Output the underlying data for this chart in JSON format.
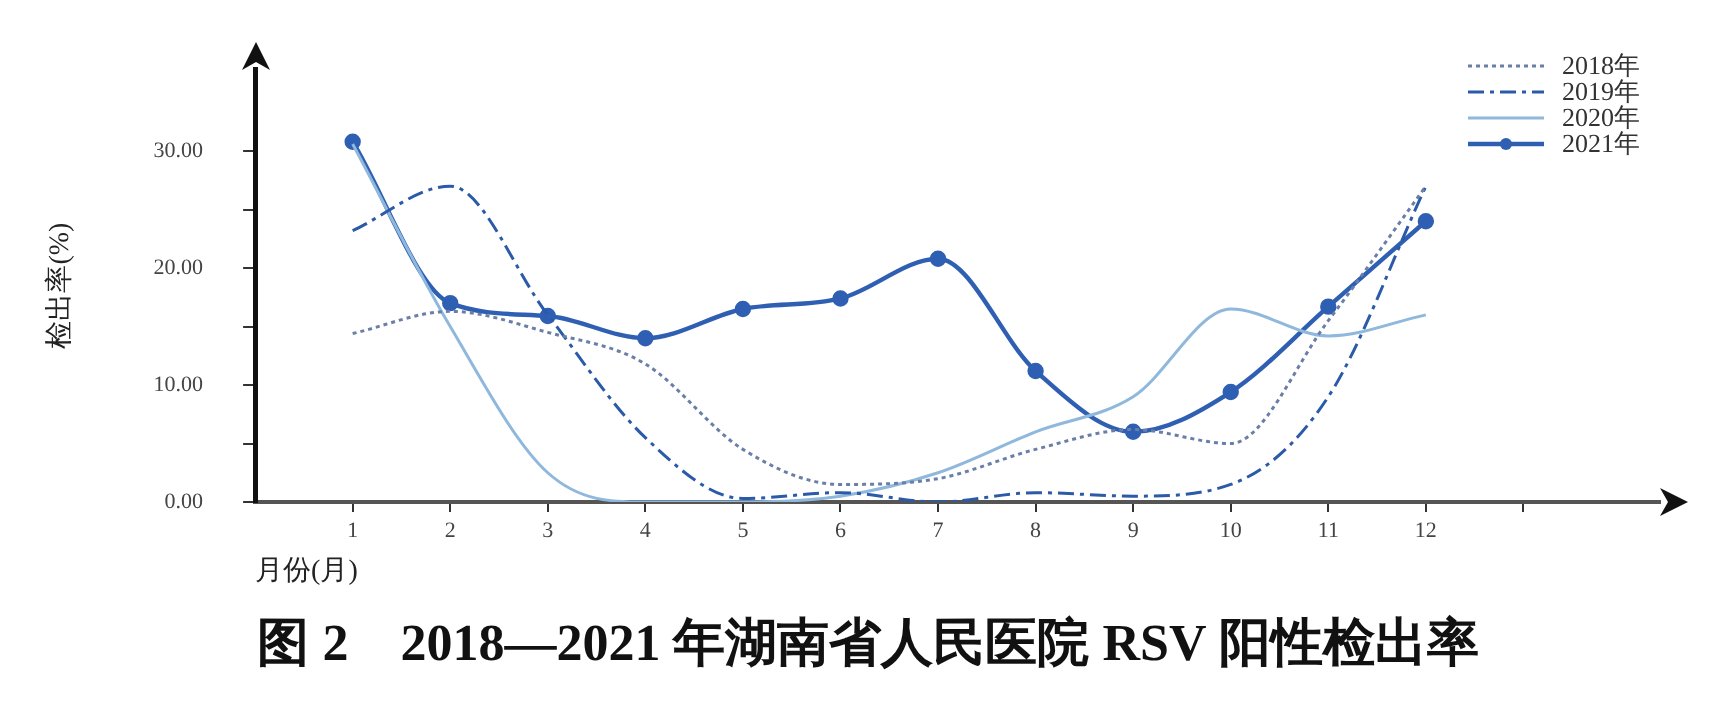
{
  "chart_data": {
    "type": "line",
    "title": "图 2　2018—2021 年湖南省人民医院 RSV 阳性检出率",
    "xlabel": "月份(月)",
    "ylabel": "检出率(%)",
    "x": [
      1,
      2,
      3,
      4,
      5,
      6,
      7,
      8,
      9,
      10,
      11,
      12
    ],
    "xlim": [
      0,
      14.4
    ],
    "xticks": [
      1,
      2,
      3,
      4,
      5,
      6,
      7,
      8,
      9,
      10,
      11,
      12,
      {
        "value": 13,
        "label": null
      }
    ],
    "ylim": [
      0,
      37
    ],
    "yticks": [
      {
        "value": 0,
        "label": "0.00"
      },
      {
        "value": 5,
        "label": null
      },
      {
        "value": 10,
        "label": "10.00"
      },
      {
        "value": 15,
        "label": null
      },
      {
        "value": 20,
        "label": "20.00"
      },
      {
        "value": 25,
        "label": null
      },
      {
        "value": 30,
        "label": "30.00"
      }
    ],
    "series": [
      {
        "name": "2018年",
        "color": "#6a7fa8",
        "line_style": "dotted",
        "marker": "none",
        "values": [
          14.4,
          16.3,
          14.5,
          11.8,
          4.5,
          1.5,
          2,
          4.5,
          6.2,
          5,
          15.5,
          27
        ]
      },
      {
        "name": "2019年",
        "color": "#2a5aa8",
        "line_style": "dashed",
        "marker": "none",
        "values": [
          23.2,
          27,
          16,
          5.5,
          0.3,
          0.8,
          0,
          0.8,
          0.5,
          1.5,
          9,
          27
        ]
      },
      {
        "name": "2020年",
        "color": "#8fb8dc",
        "line_style": "solid",
        "marker": "none",
        "values": [
          30.6,
          15,
          2.5,
          0,
          0,
          0.5,
          2.5,
          6,
          9,
          16.5,
          14.2,
          16
        ]
      },
      {
        "name": "2021年",
        "color": "#2f5fb3",
        "line_style": "solid",
        "marker": "circle",
        "values": [
          30.8,
          17,
          15.9,
          14,
          16.5,
          17.4,
          20.8,
          11.2,
          6,
          9.4,
          16.7,
          24
        ]
      }
    ],
    "grid": false,
    "legend": "top right"
  }
}
